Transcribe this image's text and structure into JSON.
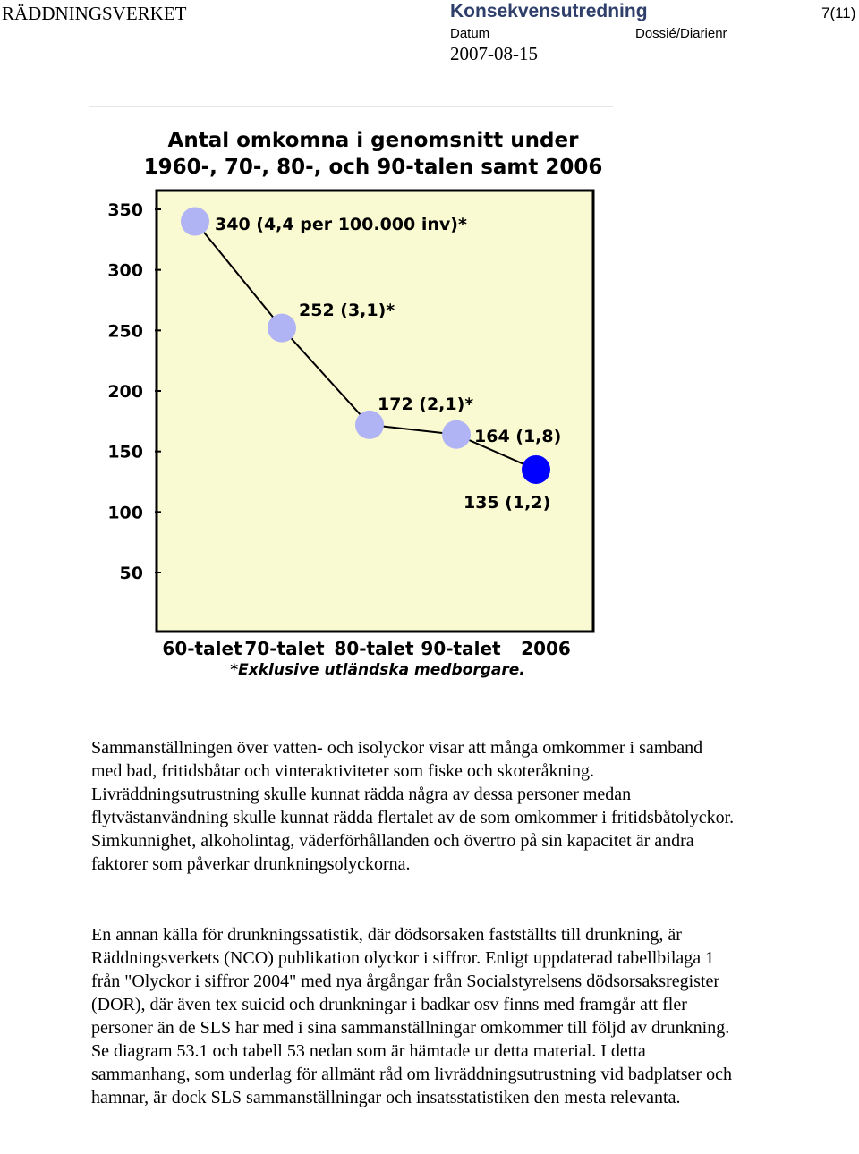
{
  "header": {
    "organization": "RÄDDNINGSVERKET",
    "doc_type": "Konsekvensutredning",
    "datum_label": "Datum",
    "dossie_label": "Dossié/Diarienr",
    "date": "2007-08-15",
    "page": "7(11)"
  },
  "chart_data": {
    "type": "line",
    "title": "Antal omkomna i genomsnitt under 1960-, 70-, 80-, och 90-talen samt 2006",
    "title_lines": [
      "Antal omkomna i genomsnitt under",
      "1960-, 70-, 80-, och 90-talen samt 2006"
    ],
    "categories": [
      "60-talet",
      "70-talet",
      "80-talet",
      "90-talet",
      "2006"
    ],
    "values": [
      340,
      252,
      172,
      164,
      135
    ],
    "point_labels": [
      "340 (4,4 per 100.000 inv)*",
      "252 (3,1)*",
      "172 (2,1)*",
      "164 (1,8)",
      "135 (1,2)"
    ],
    "point_colors": [
      "#b0b4f4",
      "#b0b4f4",
      "#b0b4f4",
      "#b0b4f4",
      "#0000ff"
    ],
    "yticks": [
      50,
      100,
      150,
      200,
      250,
      300,
      350
    ],
    "ylim": [
      0,
      375
    ],
    "footnote": "*Exklusive utländska medborgare.",
    "plot_background": "#fafad2",
    "border_color": "#000000"
  },
  "body": {
    "paragraph1": "Sammanställningen över vatten- och isolyckor visar att många omkommer i samband med bad, fritidsbåtar och vinteraktiviteter som fiske och skoteråkning. Livräddningsutrustning skulle kunnat rädda några av dessa personer medan flytvästanvändning skulle kunnat rädda flertalet av de som omkommer i fritidsbåtolyckor. Simkunnighet, alkoholintag, väderförhållanden och övertro på sin kapacitet är andra faktorer som påverkar drunkningsolyckorna.",
    "paragraph2": "En annan källa för drunkningssatistik, där dödsorsaken fastställts till drunkning, är Räddningsverkets (NCO) publikation olyckor i siffror. Enligt uppdaterad tabellbilaga 1 från \"Olyckor i siffror 2004\" med nya årgångar från Socialstyrelsens dödsorsaksregister (DOR), där även tex suicid och drunkningar i badkar osv finns med framgår att fler personer än de SLS har med i sina sammanställningar omkommer till följd av drunkning. Se diagram 53.1 och tabell 53 nedan som är hämtade ur detta material. I detta sammanhang, som underlag för allmänt råd om livräddningsutrustning vid badplatser och hamnar, är dock SLS sammanställningar och insatsstatistiken den mesta relevanta."
  }
}
